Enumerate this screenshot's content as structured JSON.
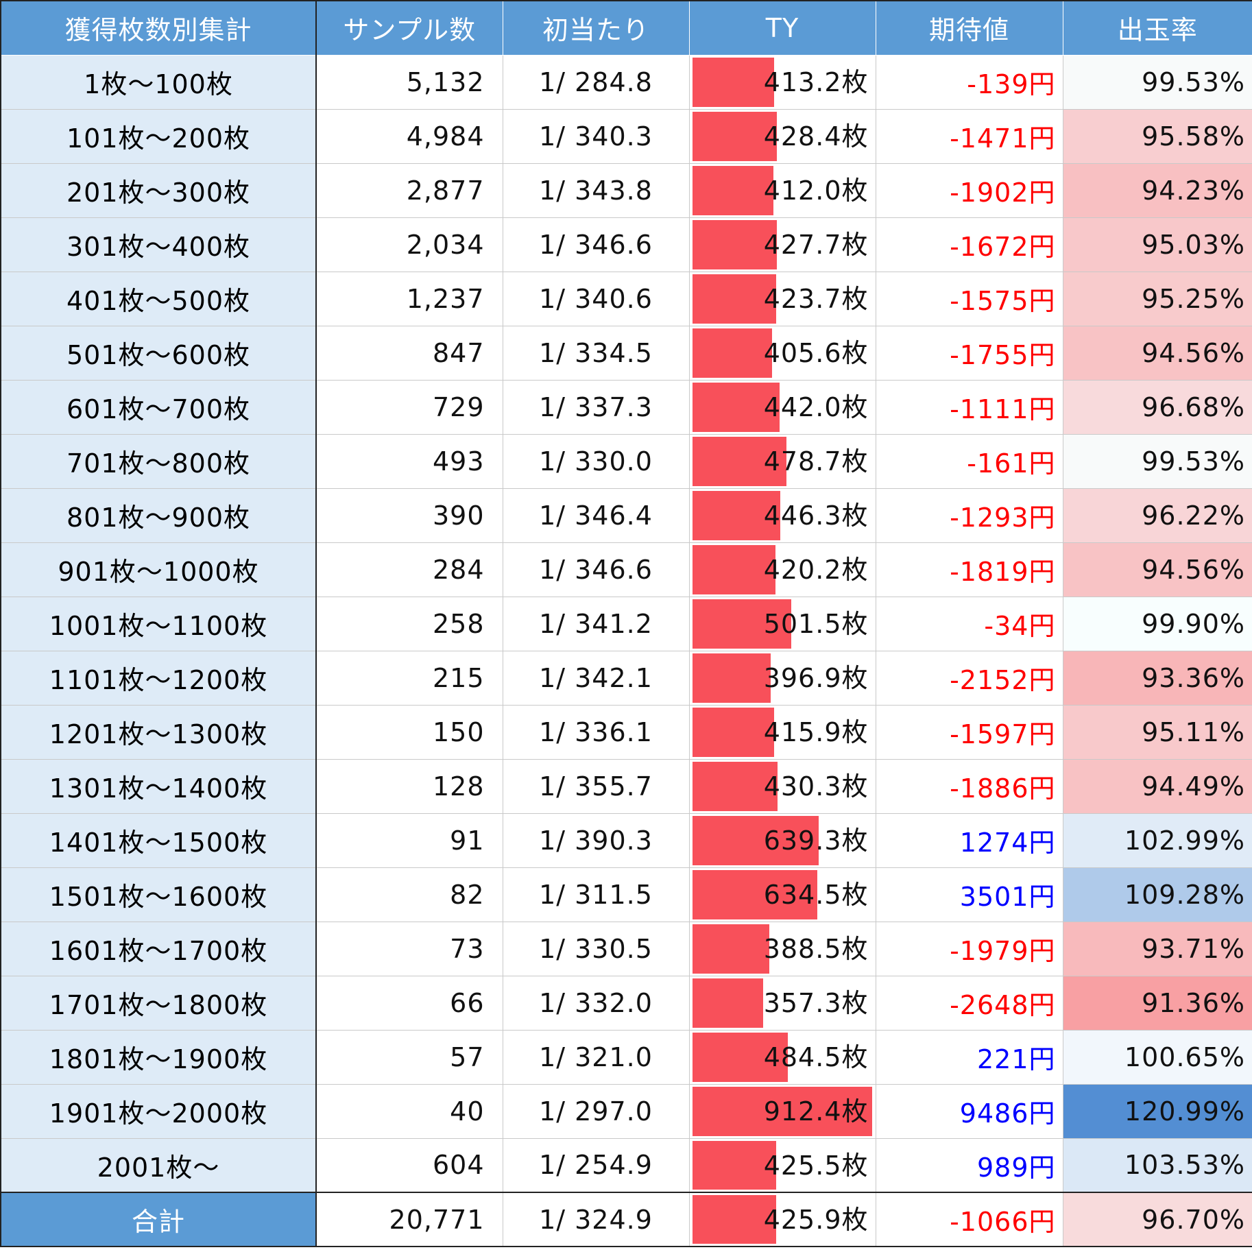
{
  "table": {
    "headers": [
      "獲得枚数別集計",
      "サンプル数",
      "初当たり",
      "TY",
      "期待値",
      "出玉率"
    ],
    "colors": {
      "header_bg": "#5b9bd5",
      "label_bg": "#deebf7",
      "bar": "#f8505a",
      "negative": "#ff0000",
      "positive": "#0000ff"
    },
    "ty_bar_max": 912.4,
    "rows": [
      {
        "label": "1枚～100枚",
        "samples": "5,132",
        "first_hit": "1/ 284.8",
        "ty_text": "413.2枚",
        "ty": 413.2,
        "ev": "-139円",
        "ev_sign": "neg",
        "payout": "99.53%",
        "payout_value": 99.53
      },
      {
        "label": "101枚～200枚",
        "samples": "4,984",
        "first_hit": "1/ 340.3",
        "ty_text": "428.4枚",
        "ty": 428.4,
        "ev": "-1471円",
        "ev_sign": "neg",
        "payout": "95.58%",
        "payout_value": 95.58
      },
      {
        "label": "201枚～300枚",
        "samples": "2,877",
        "first_hit": "1/ 343.8",
        "ty_text": "412.0枚",
        "ty": 412.0,
        "ev": "-1902円",
        "ev_sign": "neg",
        "payout": "94.23%",
        "payout_value": 94.23
      },
      {
        "label": "301枚～400枚",
        "samples": "2,034",
        "first_hit": "1/ 346.6",
        "ty_text": "427.7枚",
        "ty": 427.7,
        "ev": "-1672円",
        "ev_sign": "neg",
        "payout": "95.03%",
        "payout_value": 95.03
      },
      {
        "label": "401枚～500枚",
        "samples": "1,237",
        "first_hit": "1/ 340.6",
        "ty_text": "423.7枚",
        "ty": 423.7,
        "ev": "-1575円",
        "ev_sign": "neg",
        "payout": "95.25%",
        "payout_value": 95.25
      },
      {
        "label": "501枚～600枚",
        "samples": "847",
        "first_hit": "1/ 334.5",
        "ty_text": "405.6枚",
        "ty": 405.6,
        "ev": "-1755円",
        "ev_sign": "neg",
        "payout": "94.56%",
        "payout_value": 94.56
      },
      {
        "label": "601枚～700枚",
        "samples": "729",
        "first_hit": "1/ 337.3",
        "ty_text": "442.0枚",
        "ty": 442.0,
        "ev": "-1111円",
        "ev_sign": "neg",
        "payout": "96.68%",
        "payout_value": 96.68
      },
      {
        "label": "701枚～800枚",
        "samples": "493",
        "first_hit": "1/ 330.0",
        "ty_text": "478.7枚",
        "ty": 478.7,
        "ev": "-161円",
        "ev_sign": "neg",
        "payout": "99.53%",
        "payout_value": 99.53
      },
      {
        "label": "801枚～900枚",
        "samples": "390",
        "first_hit": "1/ 346.4",
        "ty_text": "446.3枚",
        "ty": 446.3,
        "ev": "-1293円",
        "ev_sign": "neg",
        "payout": "96.22%",
        "payout_value": 96.22
      },
      {
        "label": "901枚～1000枚",
        "samples": "284",
        "first_hit": "1/ 346.6",
        "ty_text": "420.2枚",
        "ty": 420.2,
        "ev": "-1819円",
        "ev_sign": "neg",
        "payout": "94.56%",
        "payout_value": 94.56
      },
      {
        "label": "1001枚～1100枚",
        "samples": "258",
        "first_hit": "1/ 341.2",
        "ty_text": "501.5枚",
        "ty": 501.5,
        "ev": "-34円",
        "ev_sign": "neg",
        "payout": "99.90%",
        "payout_value": 99.9
      },
      {
        "label": "1101枚～1200枚",
        "samples": "215",
        "first_hit": "1/ 342.1",
        "ty_text": "396.9枚",
        "ty": 396.9,
        "ev": "-2152円",
        "ev_sign": "neg",
        "payout": "93.36%",
        "payout_value": 93.36
      },
      {
        "label": "1201枚～1300枚",
        "samples": "150",
        "first_hit": "1/ 336.1",
        "ty_text": "415.9枚",
        "ty": 415.9,
        "ev": "-1597円",
        "ev_sign": "neg",
        "payout": "95.11%",
        "payout_value": 95.11
      },
      {
        "label": "1301枚～1400枚",
        "samples": "128",
        "first_hit": "1/ 355.7",
        "ty_text": "430.3枚",
        "ty": 430.3,
        "ev": "-1886円",
        "ev_sign": "neg",
        "payout": "94.49%",
        "payout_value": 94.49
      },
      {
        "label": "1401枚～1500枚",
        "samples": "91",
        "first_hit": "1/ 390.3",
        "ty_text": "639.3枚",
        "ty": 639.3,
        "ev": "1274円",
        "ev_sign": "pos",
        "payout": "102.99%",
        "payout_value": 102.99
      },
      {
        "label": "1501枚～1600枚",
        "samples": "82",
        "first_hit": "1/ 311.5",
        "ty_text": "634.5枚",
        "ty": 634.5,
        "ev": "3501円",
        "ev_sign": "pos",
        "payout": "109.28%",
        "payout_value": 109.28
      },
      {
        "label": "1601枚～1700枚",
        "samples": "73",
        "first_hit": "1/ 330.5",
        "ty_text": "388.5枚",
        "ty": 388.5,
        "ev": "-1979円",
        "ev_sign": "neg",
        "payout": "93.71%",
        "payout_value": 93.71
      },
      {
        "label": "1701枚～1800枚",
        "samples": "66",
        "first_hit": "1/ 332.0",
        "ty_text": "357.3枚",
        "ty": 357.3,
        "ev": "-2648円",
        "ev_sign": "neg",
        "payout": "91.36%",
        "payout_value": 91.36
      },
      {
        "label": "1801枚～1900枚",
        "samples": "57",
        "first_hit": "1/ 321.0",
        "ty_text": "484.5枚",
        "ty": 484.5,
        "ev": "221円",
        "ev_sign": "pos",
        "payout": "100.65%",
        "payout_value": 100.65
      },
      {
        "label": "1901枚～2000枚",
        "samples": "40",
        "first_hit": "1/ 297.0",
        "ty_text": "912.4枚",
        "ty": 912.4,
        "ev": "9486円",
        "ev_sign": "pos",
        "payout": "120.99%",
        "payout_value": 120.99
      },
      {
        "label": "2001枚～",
        "samples": "604",
        "first_hit": "1/ 254.9",
        "ty_text": "425.5枚",
        "ty": 425.5,
        "ev": "989円",
        "ev_sign": "pos",
        "payout": "103.53%",
        "payout_value": 103.53
      }
    ],
    "total": {
      "label": "合計",
      "samples": "20,771",
      "first_hit": "1/ 324.9",
      "ty_text": "425.9枚",
      "ty": 425.9,
      "ev": "-1066円",
      "ev_sign": "neg",
      "payout": "96.70%",
      "payout_value": 96.7
    }
  }
}
